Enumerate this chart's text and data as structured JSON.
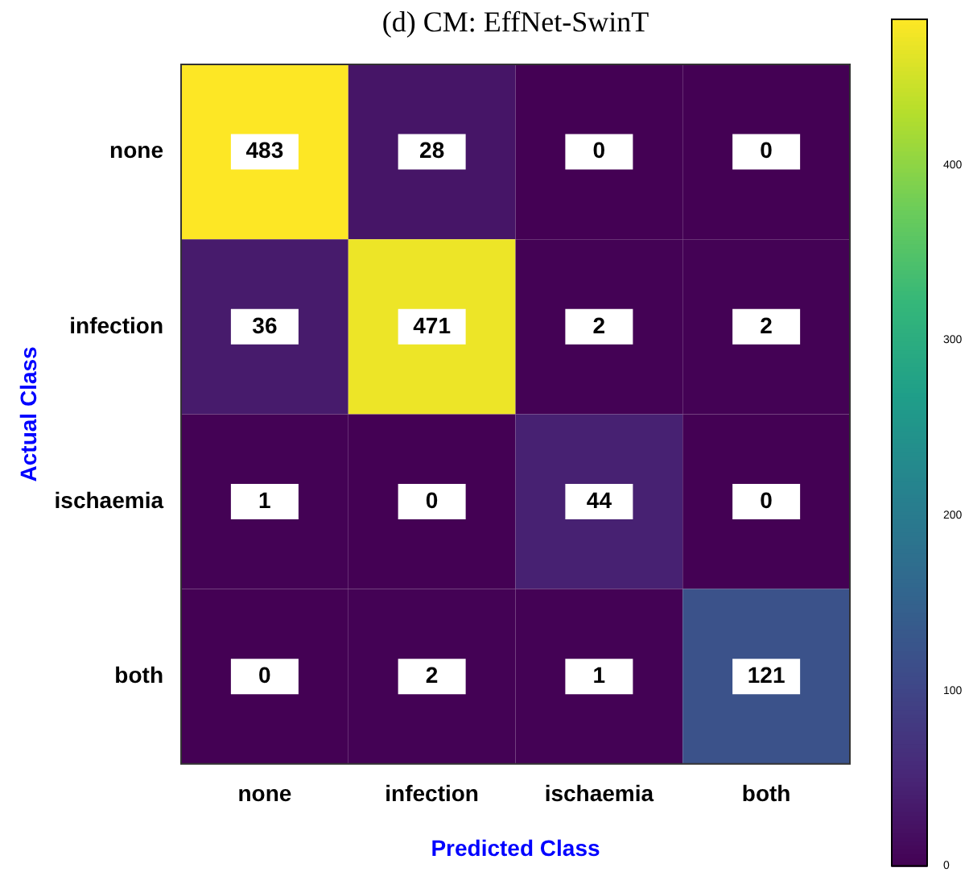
{
  "chart_data": {
    "type": "heatmap",
    "title": "(d) CM: EffNet-SwinT",
    "xlabel": "Predicted Class",
    "ylabel": "Actual Class",
    "categories": [
      "none",
      "infection",
      "ischaemia",
      "both"
    ],
    "y_categories": [
      "none",
      "infection",
      "ischaemia",
      "both"
    ],
    "cells": [
      [
        483,
        28,
        0,
        0
      ],
      [
        36,
        471,
        2,
        2
      ],
      [
        1,
        0,
        44,
        0
      ],
      [
        0,
        2,
        1,
        121
      ]
    ],
    "clim": [
      0,
      483
    ],
    "cticks": [
      0,
      100,
      200,
      300,
      400
    ],
    "data_labels": true
  }
}
